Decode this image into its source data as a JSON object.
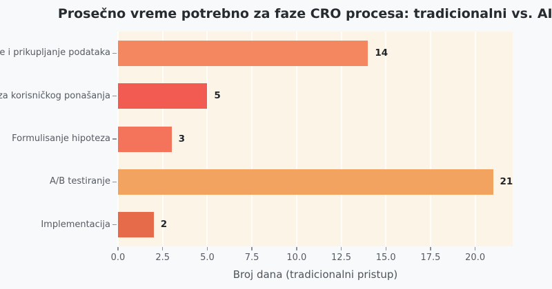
{
  "title": "Prosečno vreme potrebno za faze CRO procesa: tradicionalni vs. AI pr",
  "colors": {
    "figure_background": "#F8F9FA",
    "plot_background": "#FDF4E8",
    "gridline": "rgba(255,255,255,0.75)",
    "title_text": "#262B30",
    "tick_text": "#555B62",
    "value_label_text": "#1F2429"
  },
  "chart_data": {
    "type": "bar",
    "orientation": "horizontal",
    "title": "Prosečno vreme potrebno za faze CRO procesa: tradicionalni vs. AI pr",
    "xlabel": "Broj dana (tradicionalni pristup)",
    "ylabel": "",
    "categories": [
      "je i prikupljanje podataka",
      "iza korisničkog ponašanja",
      "Formulisanje hipoteza",
      "A/B testiranje",
      "Implementacija"
    ],
    "values": [
      14,
      5,
      3,
      21,
      2
    ],
    "value_labels": [
      "14",
      "5",
      "3",
      "21",
      "2"
    ],
    "bar_colors": [
      "#F4875F",
      "#F25B52",
      "#F3745B",
      "#F2A360",
      "#E56B4B"
    ],
    "x_ticks": [
      0.0,
      2.5,
      5.0,
      7.5,
      10.0,
      12.5,
      15.0,
      17.5,
      20.0
    ],
    "x_tick_labels": [
      "0.0",
      "2.5",
      "5.0",
      "7.5",
      "10.0",
      "12.5",
      "15.0",
      "17.5",
      "20.0"
    ],
    "xlim": [
      0,
      22.1
    ],
    "grid": true,
    "legend": false
  }
}
